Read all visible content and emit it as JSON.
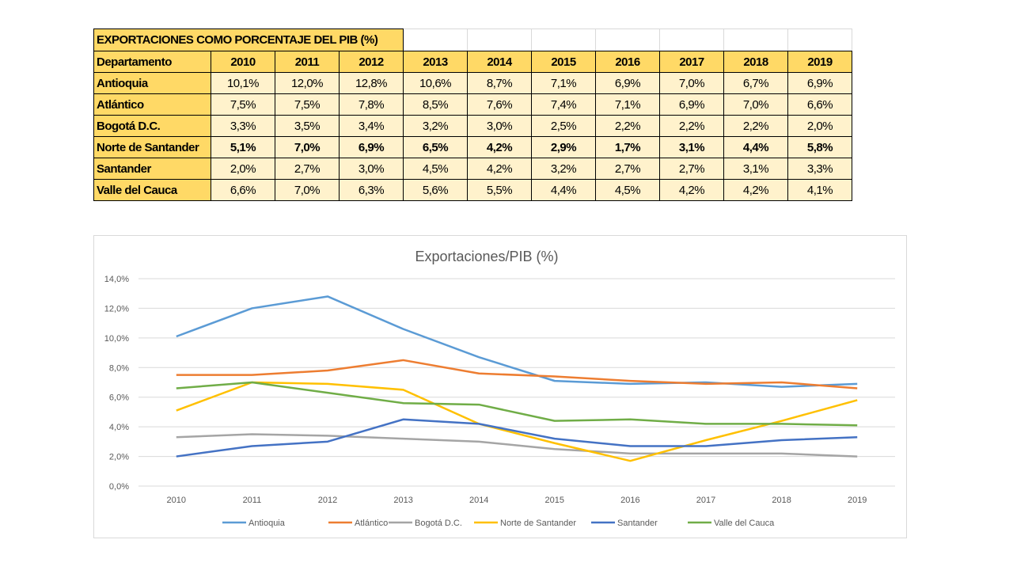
{
  "table": {
    "title": "EXPORTACIONES COMO PORCENTAJE DEL PIB (%)",
    "header": [
      "Departamento",
      "2010",
      "2011",
      "2012",
      "2013",
      "2014",
      "2015",
      "2016",
      "2017",
      "2018",
      "2019"
    ],
    "rows": [
      {
        "name": "Antioquia",
        "values": [
          "10,1%",
          "12,0%",
          "12,8%",
          "10,6%",
          "8,7%",
          "7,1%",
          "6,9%",
          "7,0%",
          "6,7%",
          "6,9%"
        ],
        "bold": false
      },
      {
        "name": "Atlántico",
        "values": [
          "7,5%",
          "7,5%",
          "7,8%",
          "8,5%",
          "7,6%",
          "7,4%",
          "7,1%",
          "6,9%",
          "7,0%",
          "6,6%"
        ],
        "bold": false
      },
      {
        "name": "Bogotá D.C.",
        "values": [
          "3,3%",
          "3,5%",
          "3,4%",
          "3,2%",
          "3,0%",
          "2,5%",
          "2,2%",
          "2,2%",
          "2,2%",
          "2,0%"
        ],
        "bold": false
      },
      {
        "name": "Norte de Santander",
        "values": [
          "5,1%",
          "7,0%",
          "6,9%",
          "6,5%",
          "4,2%",
          "2,9%",
          "1,7%",
          "3,1%",
          "4,4%",
          "5,8%"
        ],
        "bold": true
      },
      {
        "name": "Santander",
        "values": [
          "2,0%",
          "2,7%",
          "3,0%",
          "4,5%",
          "4,2%",
          "3,2%",
          "2,7%",
          "2,7%",
          "3,1%",
          "3,3%"
        ],
        "bold": false
      },
      {
        "name": "Valle del Cauca",
        "values": [
          "6,6%",
          "7,0%",
          "6,3%",
          "5,6%",
          "5,5%",
          "4,4%",
          "4,5%",
          "4,2%",
          "4,2%",
          "4,1%"
        ],
        "bold": false
      }
    ]
  },
  "chart_data": {
    "type": "line",
    "title": "Exportaciones/PIB (%)",
    "xlabel": "",
    "ylabel": "",
    "categories": [
      "2010",
      "2011",
      "2012",
      "2013",
      "2014",
      "2015",
      "2016",
      "2017",
      "2018",
      "2019"
    ],
    "ylim": [
      0,
      14
    ],
    "yticks": [
      "0,0%",
      "2,0%",
      "4,0%",
      "6,0%",
      "8,0%",
      "10,0%",
      "12,0%",
      "14,0%"
    ],
    "grid": true,
    "legend": "bottom",
    "series": [
      {
        "name": "Antioquia",
        "color": "#5B9BD5",
        "values": [
          10.1,
          12.0,
          12.8,
          10.6,
          8.7,
          7.1,
          6.9,
          7.0,
          6.7,
          6.9
        ]
      },
      {
        "name": "Atlántico",
        "color": "#ED7D31",
        "values": [
          7.5,
          7.5,
          7.8,
          8.5,
          7.6,
          7.4,
          7.1,
          6.9,
          7.0,
          6.6
        ]
      },
      {
        "name": "Bogotá D.C.",
        "color": "#A5A5A5",
        "values": [
          3.3,
          3.5,
          3.4,
          3.2,
          3.0,
          2.5,
          2.2,
          2.2,
          2.2,
          2.0
        ]
      },
      {
        "name": "Norte de Santander",
        "color": "#FFC000",
        "values": [
          5.1,
          7.0,
          6.9,
          6.5,
          4.2,
          2.9,
          1.7,
          3.1,
          4.4,
          5.8
        ]
      },
      {
        "name": "Santander",
        "color": "#4472C4",
        "values": [
          2.0,
          2.7,
          3.0,
          4.5,
          4.2,
          3.2,
          2.7,
          2.7,
          3.1,
          3.3
        ]
      },
      {
        "name": "Valle del Cauca",
        "color": "#70AD47",
        "values": [
          6.6,
          7.0,
          6.3,
          5.6,
          5.5,
          4.4,
          4.5,
          4.2,
          4.2,
          4.1
        ]
      }
    ]
  }
}
